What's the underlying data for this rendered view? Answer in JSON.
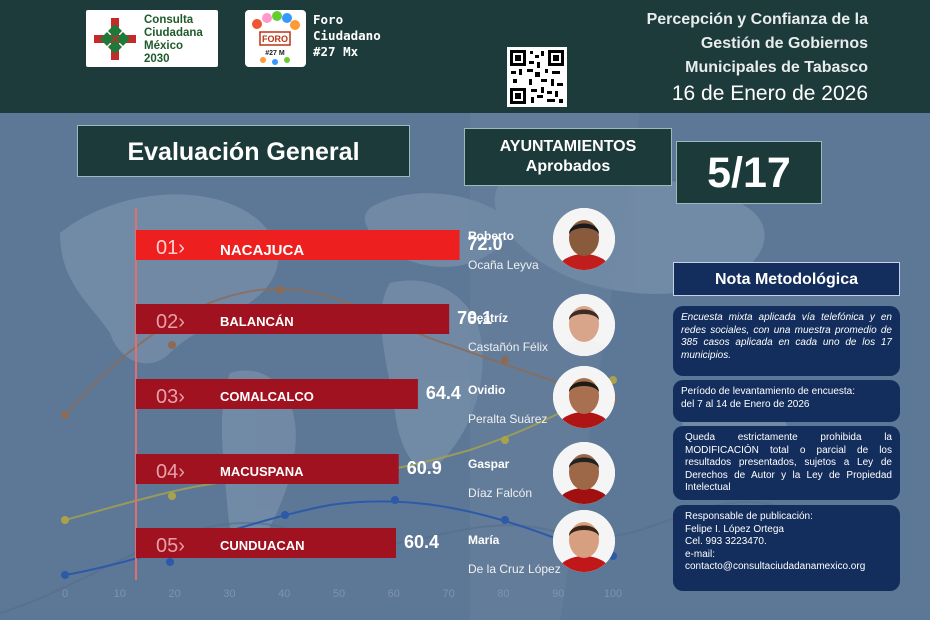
{
  "header": {
    "logo1_text": [
      "Consulta",
      "Ciudadana",
      "México",
      "2030"
    ],
    "logo2_badge": "FORO",
    "logo2_sub": "#27 M",
    "foro_text": [
      "Foro",
      "Ciudadano",
      "#27 Mx"
    ],
    "title_lines": [
      "Percepción y Confianza de la",
      "Gestión de Gobiernos",
      "Municipales de Tabasco"
    ],
    "date": "16 de Enero de 2026"
  },
  "section_title": "Evaluación General",
  "approved": {
    "label_line1": "AYUNTAMIENTOS",
    "label_line2": "Aprobados",
    "value": "5/17"
  },
  "chart_data": {
    "type": "bar",
    "orientation": "horizontal",
    "categories": [
      "NACAJUCA",
      "BALANCÁN",
      "COMALCALCO",
      "MACUSPANA",
      "CUNDUACAN"
    ],
    "ranks": [
      "01",
      "02",
      "03",
      "04",
      "05"
    ],
    "values": [
      72.0,
      70.1,
      64.4,
      60.9,
      60.4
    ],
    "value_labels": [
      "72.0",
      "70.1",
      "64.4",
      "60.9",
      "60.4"
    ],
    "xlim": [
      0,
      100
    ],
    "x_ticks": [
      "0",
      "10",
      "20",
      "30",
      "40",
      "50",
      "60",
      "70",
      "80",
      "90",
      "100"
    ],
    "colors": [
      "#ee1f1f",
      "#a01220",
      "#a01220",
      "#a01220",
      "#a01220"
    ]
  },
  "people": [
    {
      "first": "Roberto",
      "last": "Ocaña Leyva"
    },
    {
      "first": "Beatríz",
      "last": "Castañón Félix"
    },
    {
      "first": "Ovidio",
      "last": "Peralta Suárez"
    },
    {
      "first": "Gaspar",
      "last": "Díaz Falcón"
    },
    {
      "first": "María",
      "last": "De la Cruz López"
    }
  ],
  "nota": {
    "title": "Nota Metodológica",
    "p1": "Encuesta mixta aplicada vía telefónica y en redes sociales, con una muestra promedio de 385 casos aplicada en cada uno de los 17 municipios.",
    "p2_line1": "Período de levantamiento de encuesta:",
    "p2_line2": "del 7 al 14 de Enero de 2026",
    "p3": "Queda estrictamente prohibida la MODIFICACIÓN total o parcial de los resultados presentados, sujetos a Ley de Derechos de Autor y la Ley de Propiedad Intelectual",
    "p4_lines": [
      "Responsable de publicación:",
      "Felipe I. López Ortega",
      "Cel. 993 3223470.",
      "e-mail:",
      "contacto@consultaciudadanamexico.org"
    ]
  },
  "colors": {
    "topbar": "#1e3b3c",
    "background": "#5d7796",
    "dark_box": "#1d3a3a",
    "nota_box": "#132e5c"
  }
}
